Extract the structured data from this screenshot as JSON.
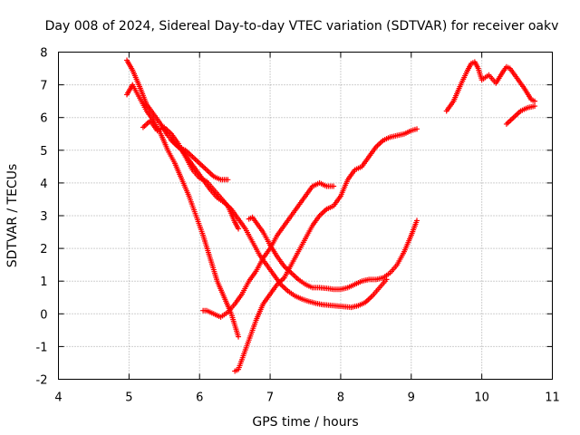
{
  "chart_data": {
    "type": "scatter",
    "title": "Day 008 of 2024, Sidereal Day-to-day VTEC variation (SDTVAR) for receiver oakv",
    "xlabel": "GPS time / hours",
    "ylabel": "SDTVAR / TECUs",
    "xlim": [
      4,
      11
    ],
    "ylim": [
      -2,
      8
    ],
    "xticks": [
      "4",
      "5",
      "6",
      "7",
      "8",
      "9",
      "10",
      "11"
    ],
    "yticks": [
      "-2",
      "-1",
      "0",
      "1",
      "2",
      "3",
      "4",
      "5",
      "6",
      "7",
      "8"
    ],
    "grid": true,
    "marker": "+",
    "color": "#ff0000",
    "series": [
      {
        "x": [
          4.97,
          5.05,
          5.15,
          5.25,
          5.35,
          5.45,
          5.55,
          5.65,
          5.75,
          5.85,
          5.95,
          6.05,
          6.15,
          6.25,
          6.35,
          6.45,
          6.55,
          6.65,
          6.75,
          6.85,
          6.95,
          7.05,
          7.15,
          7.25,
          7.35,
          7.45,
          7.55,
          7.65,
          7.75,
          7.85,
          7.95,
          8.05,
          8.15,
          8.25,
          8.35,
          8.45,
          8.55,
          8.65
        ],
        "y": [
          7.75,
          7.45,
          6.95,
          6.4,
          6.1,
          5.8,
          5.45,
          5.2,
          5.0,
          4.7,
          4.4,
          4.1,
          3.8,
          3.55,
          3.4,
          3.2,
          2.9,
          2.6,
          2.2,
          1.8,
          1.5,
          1.2,
          0.9,
          0.7,
          0.55,
          0.45,
          0.38,
          0.32,
          0.28,
          0.26,
          0.24,
          0.22,
          0.2,
          0.25,
          0.35,
          0.55,
          0.8,
          1.05
        ]
      },
      {
        "x": [
          4.97,
          5.05,
          5.15,
          5.25,
          5.35,
          5.45,
          5.55,
          5.65,
          5.75,
          5.85,
          5.95,
          6.05,
          6.15,
          6.25,
          6.35,
          6.45,
          6.55
        ],
        "y": [
          6.7,
          7.0,
          6.6,
          6.2,
          5.9,
          5.5,
          5.0,
          4.6,
          4.1,
          3.6,
          3.0,
          2.4,
          1.7,
          1.0,
          0.5,
          0.0,
          -0.7
        ]
      },
      {
        "x": [
          5.2,
          5.3,
          5.4,
          5.5,
          5.6,
          5.7,
          5.8,
          5.9,
          6.0,
          6.1,
          6.2,
          6.3,
          6.4,
          6.5,
          6.55
        ],
        "y": [
          5.7,
          5.9,
          5.6,
          5.7,
          5.5,
          5.2,
          4.8,
          4.4,
          4.15,
          4.05,
          3.8,
          3.55,
          3.3,
          2.8,
          2.6
        ]
      },
      {
        "x": [
          5.6,
          5.7,
          5.8,
          5.9,
          6.0,
          6.1,
          6.2,
          6.3,
          6.4
        ],
        "y": [
          5.3,
          5.1,
          5.0,
          4.8,
          4.6,
          4.4,
          4.2,
          4.1,
          4.1
        ]
      },
      {
        "x": [
          6.05,
          6.1,
          6.2,
          6.3,
          6.4,
          6.5,
          6.6,
          6.7,
          6.8,
          6.9,
          7.0,
          7.1,
          7.2,
          7.3,
          7.4,
          7.5,
          7.6,
          7.7,
          7.8,
          7.9
        ],
        "y": [
          0.1,
          0.1,
          0.0,
          -0.1,
          0.05,
          0.3,
          0.6,
          1.0,
          1.3,
          1.7,
          2.0,
          2.4,
          2.7,
          3.0,
          3.3,
          3.6,
          3.9,
          4.0,
          3.9,
          3.9
        ]
      },
      {
        "x": [
          6.5,
          6.55,
          6.6,
          6.7,
          6.8,
          6.9,
          7.0,
          7.1,
          7.2,
          7.3,
          7.4,
          7.5,
          7.6,
          7.7,
          7.8,
          7.9,
          8.0,
          8.1,
          8.2,
          8.3,
          8.4,
          8.5,
          8.6,
          8.7,
          8.8,
          8.9,
          9.0,
          9.08
        ],
        "y": [
          -1.75,
          -1.7,
          -1.4,
          -0.8,
          -0.2,
          0.3,
          0.6,
          0.9,
          1.1,
          1.5,
          1.9,
          2.3,
          2.7,
          3.0,
          3.2,
          3.3,
          3.6,
          4.1,
          4.4,
          4.5,
          4.8,
          5.1,
          5.3,
          5.4,
          5.45,
          5.5,
          5.6,
          5.65
        ]
      },
      {
        "x": [
          6.7,
          6.75,
          6.8,
          6.9,
          7.0,
          7.1,
          7.2,
          7.3,
          7.4,
          7.5,
          7.6,
          7.7,
          7.8,
          7.9,
          8.0,
          8.1,
          8.2,
          8.3,
          8.4,
          8.5,
          8.6,
          8.7,
          8.8,
          8.9,
          9.0,
          9.08
        ],
        "y": [
          2.9,
          2.95,
          2.8,
          2.5,
          2.1,
          1.75,
          1.45,
          1.25,
          1.05,
          0.9,
          0.8,
          0.8,
          0.78,
          0.75,
          0.75,
          0.8,
          0.9,
          1.0,
          1.05,
          1.05,
          1.1,
          1.25,
          1.5,
          1.9,
          2.4,
          2.85
        ]
      },
      {
        "x": [
          9.5,
          9.6,
          9.7,
          9.8,
          9.85,
          9.9,
          9.95,
          10.0,
          10.1,
          10.2,
          10.3,
          10.35,
          10.4,
          10.5,
          10.6,
          10.7,
          10.75
        ],
        "y": [
          6.2,
          6.5,
          7.0,
          7.45,
          7.65,
          7.7,
          7.5,
          7.15,
          7.3,
          7.05,
          7.4,
          7.55,
          7.5,
          7.2,
          6.9,
          6.55,
          6.5
        ]
      },
      {
        "x": [
          10.35,
          10.45,
          10.55,
          10.65,
          10.75
        ],
        "y": [
          5.8,
          6.0,
          6.2,
          6.3,
          6.35
        ]
      }
    ]
  }
}
